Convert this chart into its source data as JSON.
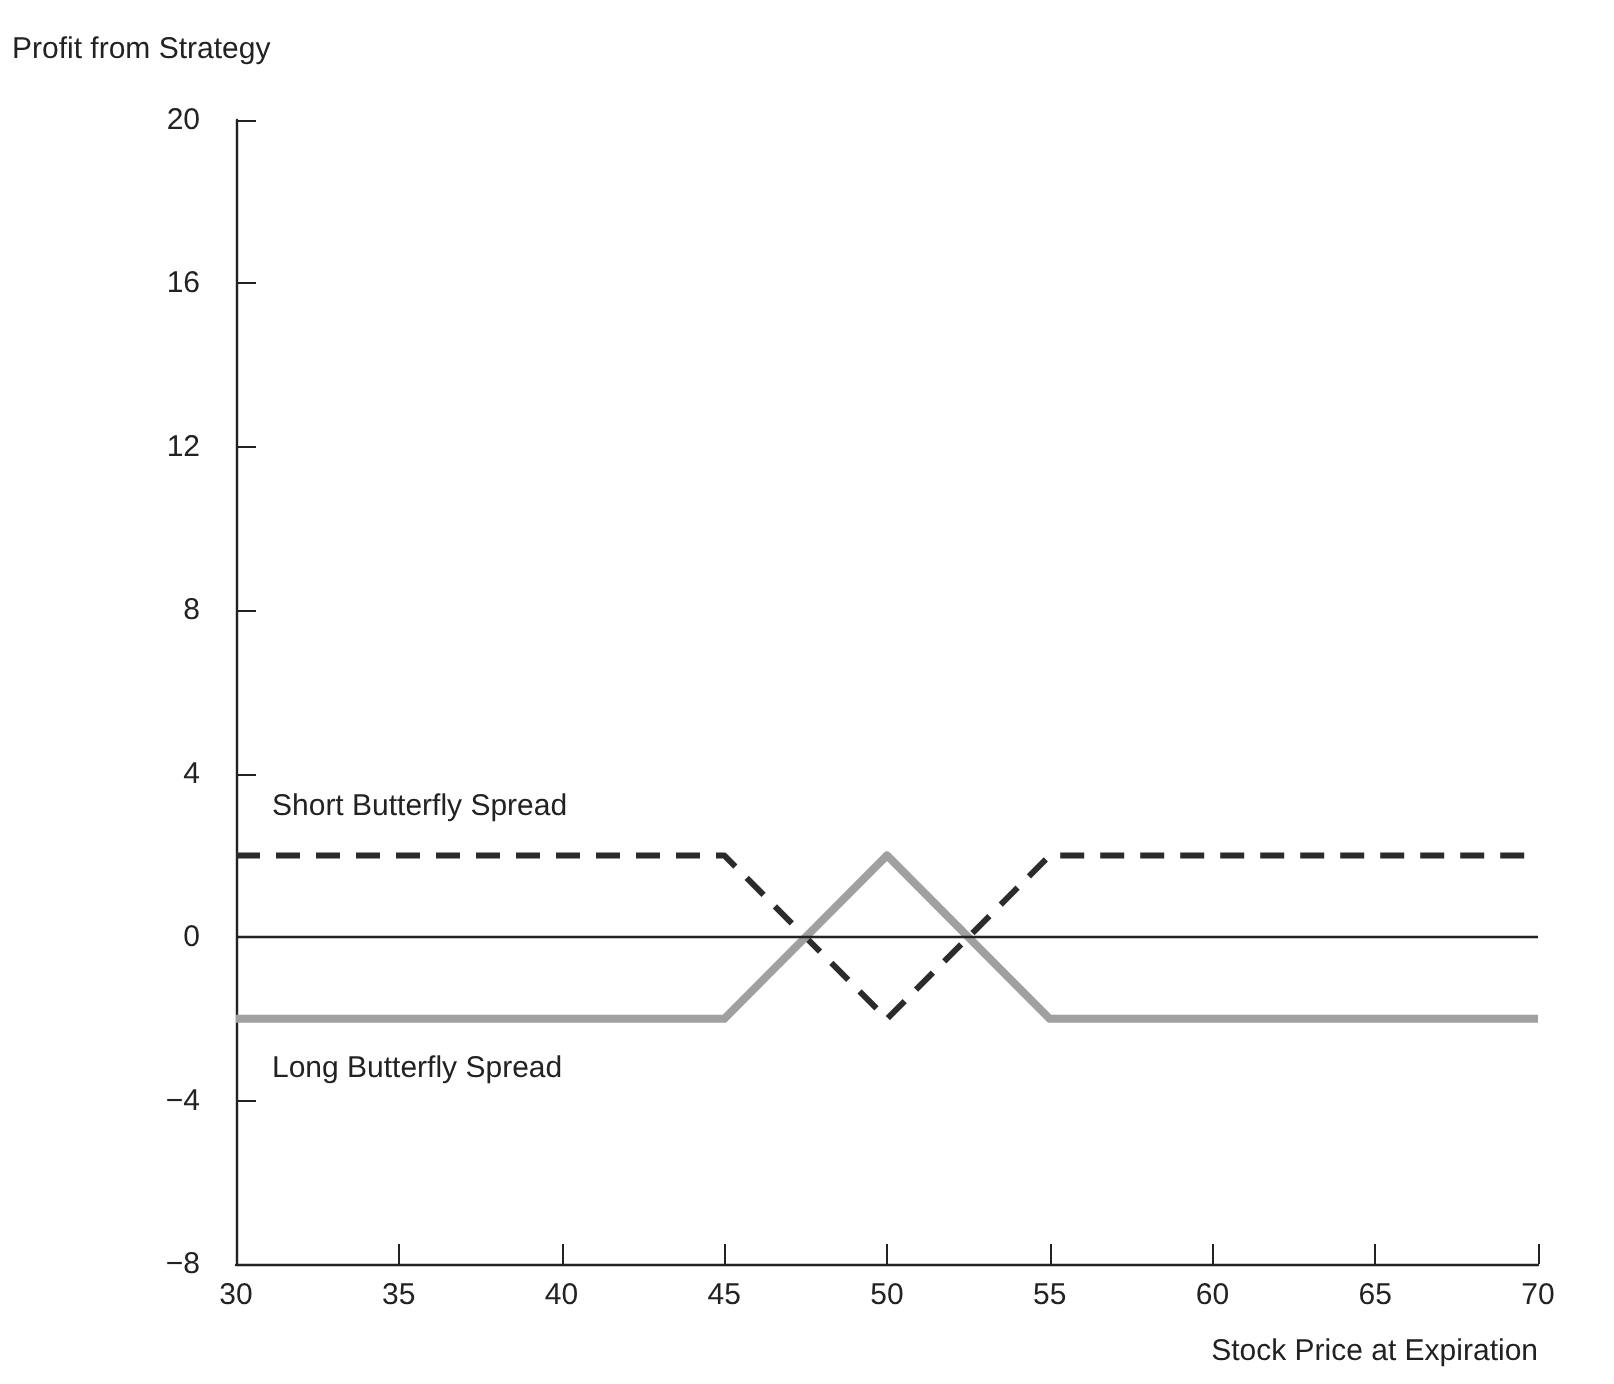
{
  "chart_data": {
    "type": "line",
    "xlabel": "Stock Price at Expiration",
    "ylabel": "Profit from Strategy",
    "x": [
      30,
      45,
      50,
      55,
      70
    ],
    "series": [
      {
        "name": "Short Butterfly Spread",
        "color": "#2b2b2b",
        "values": [
          2,
          2,
          -2,
          2,
          2
        ],
        "line_style": "dashed"
      },
      {
        "name": "Long Butterfly Spread",
        "color": "#a0a0a0",
        "values": [
          -2,
          -2,
          2,
          -2,
          -2
        ],
        "line_style": "solid"
      }
    ],
    "xlim": [
      30,
      70
    ],
    "xticks": [
      30,
      35,
      40,
      45,
      50,
      55,
      60,
      65,
      70
    ],
    "ylim": [
      -8,
      20
    ],
    "yticks": [
      -8,
      -4,
      0,
      4,
      8,
      12,
      16,
      20
    ],
    "ref_lines": [
      {
        "axis": "y",
        "value": 0,
        "color": "#222222",
        "line_style": "solid"
      }
    ],
    "grid": false,
    "marker": "none"
  }
}
